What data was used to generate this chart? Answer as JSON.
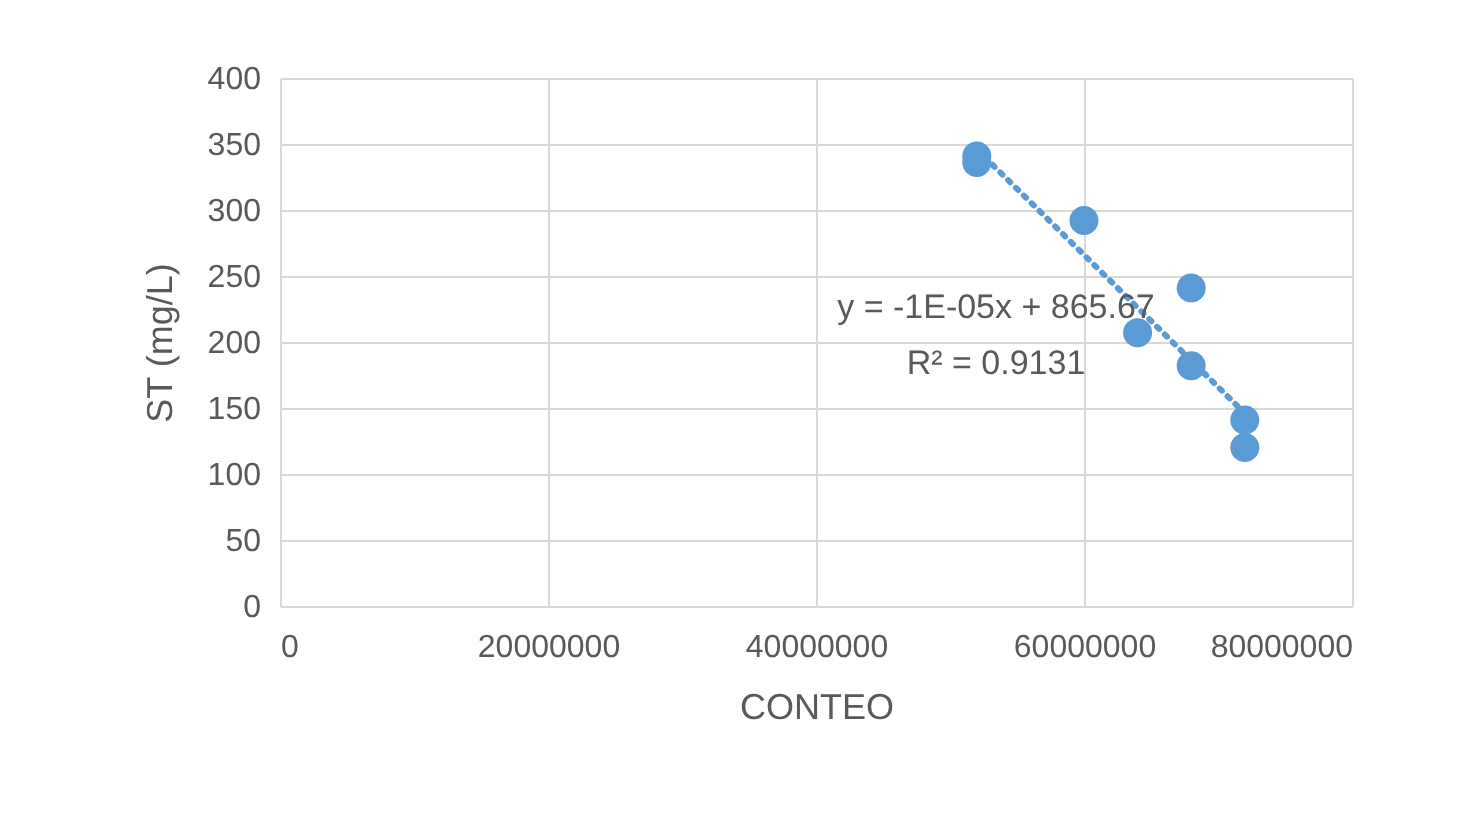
{
  "chart_data": {
    "type": "scatter",
    "xlabel": "CONTEO",
    "ylabel": "ST (mg/L)",
    "series": [
      {
        "marker": "circle",
        "color": "#5b9bd5",
        "x": [
          52000000,
          52000000,
          60000000,
          64000000,
          68000000,
          68000000,
          72000000,
          72000000
        ],
        "values": [
          341,
          336,
          292,
          207,
          241,
          182,
          141,
          120
        ]
      },
      {
        "type": "line",
        "color": "#5b9bd5",
        "line_style": "dotted",
        "x": [
          52000000,
          72000000
        ],
        "values": [
          346,
          146
        ]
      }
    ],
    "xlim": [
      0,
      80000000
    ],
    "xticks": [
      0,
      20000000,
      40000000,
      60000000,
      80000000
    ],
    "ylim": [
      0,
      400
    ],
    "yticks": [
      0,
      50,
      100,
      150,
      200,
      250,
      300,
      350,
      400
    ],
    "grid": true,
    "annotations": [
      "y = -1E-05x + 865.67",
      "R² = 0.9131"
    ]
  }
}
